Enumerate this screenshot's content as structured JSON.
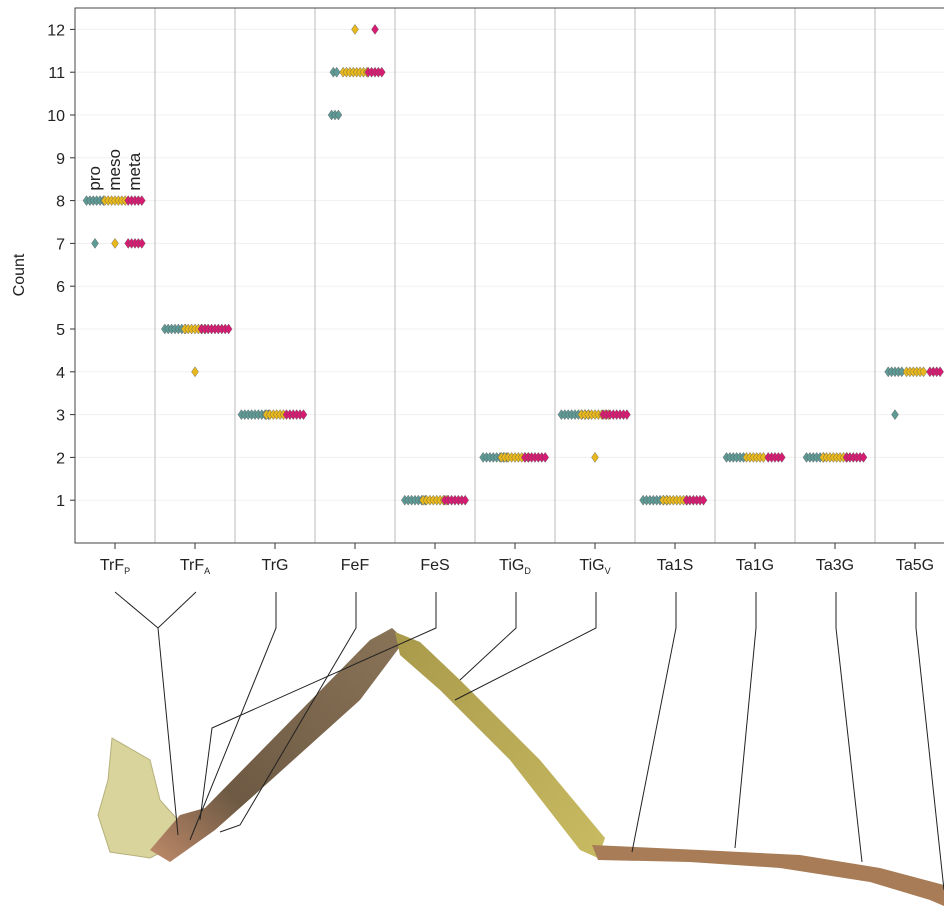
{
  "chart_data": {
    "type": "dot",
    "y_label": "Count",
    "categories": [
      {
        "text": "TrF",
        "sub": "P"
      },
      {
        "text": "TrF",
        "sub": "A"
      },
      {
        "text": "TrG"
      },
      {
        "text": "FeF"
      },
      {
        "text": "FeS"
      },
      {
        "text": "TiG",
        "sub": "D"
      },
      {
        "text": "TiG",
        "sub": "V"
      },
      {
        "text": "Ta1S"
      },
      {
        "text": "Ta1G"
      },
      {
        "text": "Ta3G"
      },
      {
        "text": "Ta5G"
      }
    ],
    "series": [
      {
        "name": "pro",
        "color": "#5e9a96",
        "values": [
          [
            8,
            8,
            8,
            8,
            8,
            8,
            7
          ],
          [
            5,
            5,
            5,
            5,
            5,
            5,
            5
          ],
          [
            3,
            3,
            3,
            3,
            3,
            3,
            3,
            3,
            3
          ],
          [
            11,
            11,
            10,
            10,
            10
          ],
          [
            1,
            1,
            1,
            1,
            1,
            1,
            1
          ],
          [
            2,
            2,
            2,
            2,
            2,
            2,
            2,
            2
          ],
          [
            3,
            3,
            3,
            3,
            3,
            3,
            3,
            3,
            3
          ],
          [
            1,
            1,
            1,
            1,
            1,
            1,
            1,
            1
          ],
          [
            2,
            2,
            2,
            2,
            2,
            2
          ],
          [
            2,
            2,
            2,
            2,
            2,
            2
          ],
          [
            4,
            4,
            4,
            4,
            4,
            3
          ]
        ]
      },
      {
        "name": "meso",
        "color": "#e8b81c",
        "values": [
          [
            8,
            8,
            8,
            8,
            8,
            8,
            8,
            7
          ],
          [
            5,
            5,
            5,
            5,
            5,
            5,
            5,
            4
          ],
          [
            3,
            3,
            3,
            3,
            3,
            3
          ],
          [
            11,
            11,
            11,
            11,
            11,
            11,
            11,
            11,
            12
          ],
          [
            1,
            1,
            1,
            1,
            1,
            1,
            1,
            1
          ],
          [
            2,
            2,
            2,
            2,
            2,
            2,
            2,
            2,
            2
          ],
          [
            3,
            3,
            3,
            3,
            3,
            3,
            3,
            3,
            3,
            2
          ],
          [
            1,
            1,
            1,
            1,
            1,
            1,
            1,
            1
          ],
          [
            2,
            2,
            2,
            2,
            2,
            2
          ],
          [
            2,
            2,
            2,
            2,
            2,
            2,
            2,
            2
          ],
          [
            4,
            4,
            4,
            4,
            4,
            4
          ]
        ]
      },
      {
        "name": "meta",
        "color": "#d81b72",
        "values": [
          [
            8,
            8,
            8,
            8,
            8,
            7,
            7,
            7,
            7,
            7
          ],
          [
            5,
            5,
            5,
            5,
            5,
            5,
            5,
            5,
            5
          ],
          [
            3,
            3,
            3,
            3,
            3,
            3
          ],
          [
            11,
            11,
            11,
            11,
            11,
            12
          ],
          [
            1,
            1,
            1,
            1,
            1,
            1,
            1
          ],
          [
            2,
            2,
            2,
            2,
            2,
            2,
            2
          ],
          [
            3,
            3,
            3,
            3,
            3,
            3,
            3,
            3
          ],
          [
            1,
            1,
            1,
            1,
            1,
            1
          ],
          [
            2,
            2,
            2,
            2,
            2
          ],
          [
            2,
            2,
            2,
            2,
            2,
            2
          ],
          [
            4,
            4,
            4,
            4
          ]
        ]
      }
    ],
    "ylim": [
      0,
      12.5
    ],
    "yticks": [
      1,
      2,
      3,
      4,
      5,
      6,
      7,
      8,
      9,
      10,
      11,
      12
    ],
    "grid": true
  }
}
